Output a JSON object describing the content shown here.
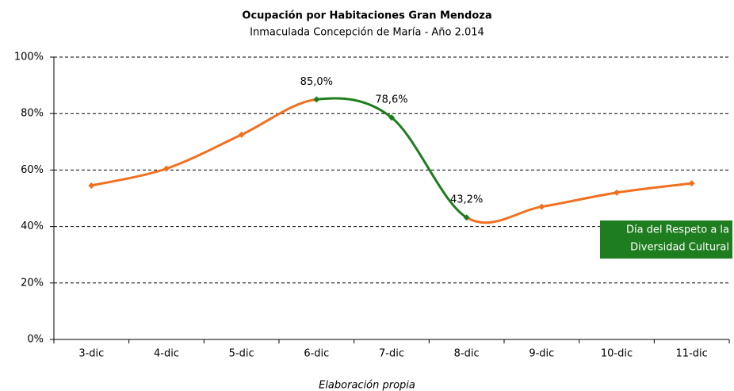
{
  "chart_data": {
    "type": "line",
    "title": "Ocupación por Habitaciones Gran Mendoza",
    "subtitle": "Inmaculada Concepción de María - Año 2.014",
    "source": "Elaboración propia",
    "categories": [
      "3-dic",
      "4-dic",
      "5-dic",
      "6-dic",
      "7-dic",
      "8-dic",
      "9-dic",
      "10-dic",
      "11-dic"
    ],
    "values": [
      54.5,
      60.5,
      72.5,
      85.0,
      78.6,
      43.2,
      47,
      52,
      55.3
    ],
    "value_labels": [
      null,
      null,
      null,
      "85,0%",
      "78,6%",
      "43,2%",
      null,
      null,
      null
    ],
    "color": "#f07020",
    "segment_colors": [
      "#f07020",
      "#f07020",
      "#f07020",
      "#1e7d1e",
      "#1e7d1e",
      "#f07020",
      "#f07020",
      "#f07020"
    ],
    "marker_colors": [
      "#f07020",
      "#f07020",
      "#f07020",
      "#1e7d1e",
      "#1e7d1e",
      "#1e7d1e",
      "#f07020",
      "#f07020",
      "#f07020"
    ],
    "ylim": [
      0,
      100
    ],
    "yticks": [
      {
        "value": 0,
        "label": "0%"
      },
      {
        "value": 20,
        "label": "20%"
      },
      {
        "value": 40,
        "label": "40%"
      },
      {
        "value": 60,
        "label": "60%"
      },
      {
        "value": 80,
        "label": "80%"
      },
      {
        "value": 100,
        "label": "100%"
      }
    ],
    "grid": true,
    "annotation": [
      "Día del Respeto a la",
      "Diversidad Cultural"
    ],
    "annotation_color": "#1e7d1e"
  }
}
